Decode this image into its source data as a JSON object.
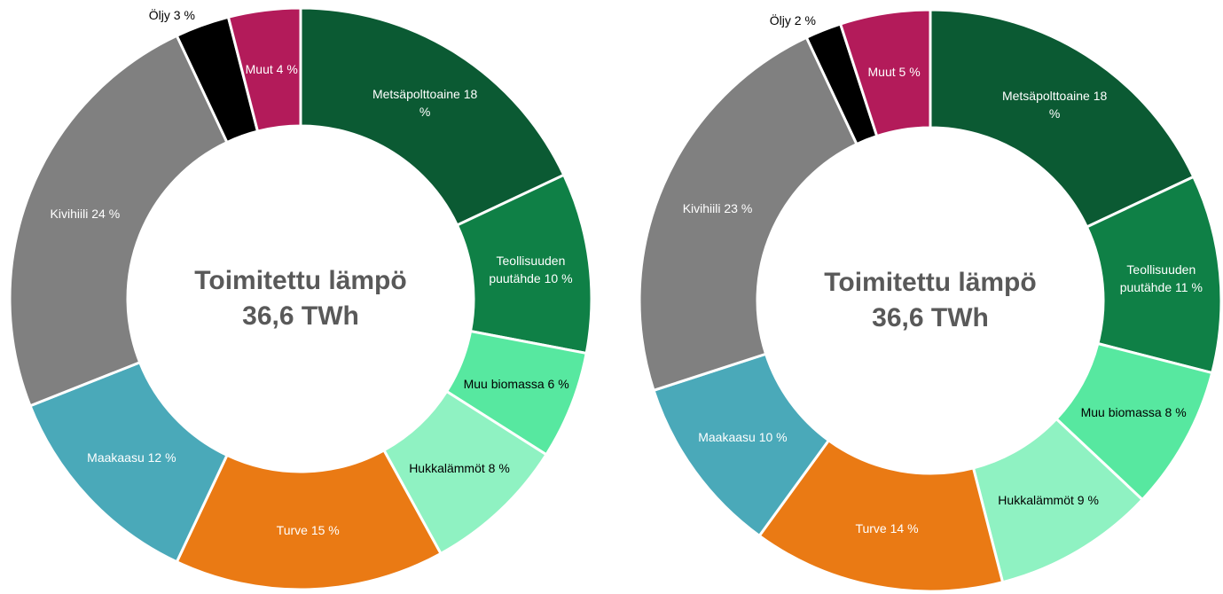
{
  "chart_data": [
    {
      "type": "donut",
      "title": "Toimitettu lämpö",
      "subtitle": "36,6 TWh",
      "categories": [
        "Metsäpolttoaine",
        "Teollisuuden puutähde",
        "Muu biomassa",
        "Hukkalämmöt",
        "Turve",
        "Maakaasu",
        "Kivihiili",
        "Öljy",
        "Muut"
      ],
      "values": [
        18,
        10,
        6,
        8,
        15,
        12,
        24,
        3,
        4
      ],
      "value_labels": [
        "18 %",
        "10 %",
        "6 %",
        "8 %",
        "15 %",
        "12 %",
        "24 %",
        "3 %",
        "4 %"
      ],
      "colors": [
        "#0b5a33",
        "#0f8046",
        "#57e8a0",
        "#8ff2c2",
        "#ea7a14",
        "#4aa9b9",
        "#808080",
        "#000000",
        "#b31b5a"
      ]
    },
    {
      "type": "donut",
      "title": "Toimitettu lämpö",
      "subtitle": "36,6 TWh",
      "categories": [
        "Metsäpolttoaine",
        "Teollisuuden puutähde",
        "Muu biomassa",
        "Hukkalämmöt",
        "Turve",
        "Maakaasu",
        "Kivihiili",
        "Öljy",
        "Muut"
      ],
      "values": [
        18,
        11,
        8,
        9,
        14,
        10,
        23,
        2,
        5
      ],
      "value_labels": [
        "18 %",
        "11 %",
        "8 %",
        "9 %",
        "14 %",
        "10 %",
        "23 %",
        "2 %",
        "5 %"
      ],
      "colors": [
        "#0b5a33",
        "#0f8046",
        "#57e8a0",
        "#8ff2c2",
        "#ea7a14",
        "#4aa9b9",
        "#808080",
        "#000000",
        "#b31b5a"
      ]
    }
  ]
}
